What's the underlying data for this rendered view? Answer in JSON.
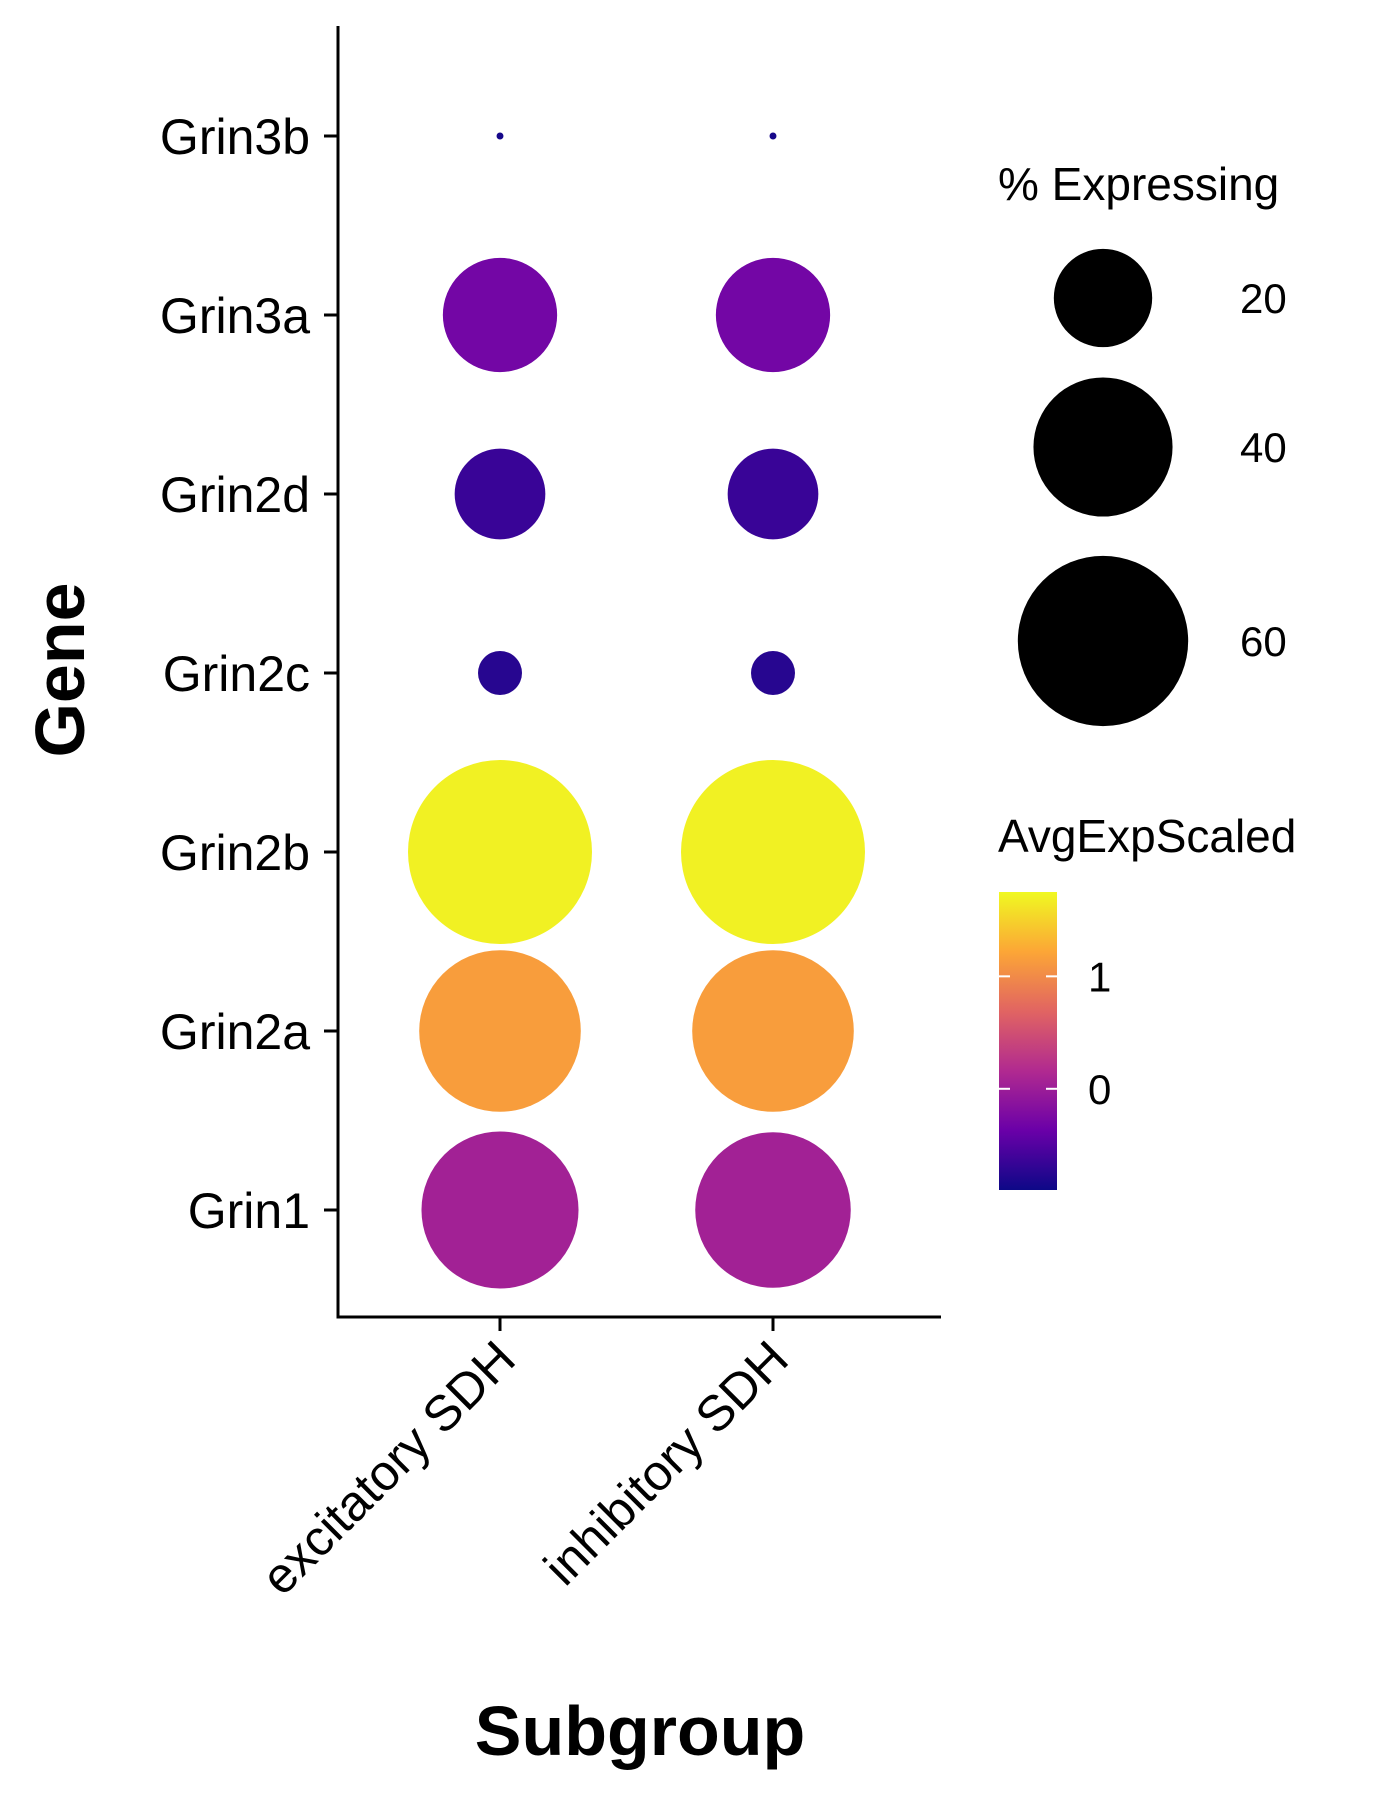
{
  "chart_data": {
    "type": "dot",
    "xlabel": "Subgroup",
    "ylabel": "Gene",
    "categories_x": [
      "excitatory SDH",
      "inhibitory SDH"
    ],
    "categories_y": [
      "Grin1",
      "Grin2a",
      "Grin2b",
      "Grin2c",
      "Grin2d",
      "Grin3a",
      "Grin3b"
    ],
    "points": [
      {
        "x": "excitatory SDH",
        "y": "Grin1",
        "pct": 51,
        "avg": 0.05
      },
      {
        "x": "inhibitory SDH",
        "y": "Grin1",
        "pct": 50,
        "avg": 0.05
      },
      {
        "x": "excitatory SDH",
        "y": "Grin2a",
        "pct": 54,
        "avg": 1.15
      },
      {
        "x": "inhibitory SDH",
        "y": "Grin2a",
        "pct": 54,
        "avg": 1.15
      },
      {
        "x": "excitatory SDH",
        "y": "Grin2b",
        "pct": 70,
        "avg": 1.7
      },
      {
        "x": "inhibitory SDH",
        "y": "Grin2b",
        "pct": 70,
        "avg": 1.7
      },
      {
        "x": "excitatory SDH",
        "y": "Grin2c",
        "pct": 4,
        "avg": -0.75
      },
      {
        "x": "inhibitory SDH",
        "y": "Grin2c",
        "pct": 4,
        "avg": -0.75
      },
      {
        "x": "excitatory SDH",
        "y": "Grin2d",
        "pct": 17,
        "avg": -0.65
      },
      {
        "x": "inhibitory SDH",
        "y": "Grin2d",
        "pct": 17,
        "avg": -0.65
      },
      {
        "x": "excitatory SDH",
        "y": "Grin3a",
        "pct": 27,
        "avg": -0.3
      },
      {
        "x": "inhibitory SDH",
        "y": "Grin3a",
        "pct": 27,
        "avg": -0.3
      },
      {
        "x": "excitatory SDH",
        "y": "Grin3b",
        "pct": 0.1,
        "avg": -0.85
      },
      {
        "x": "inhibitory SDH",
        "y": "Grin3b",
        "pct": 0.1,
        "avg": -0.85
      }
    ],
    "size_legend": {
      "title": "% Expressing",
      "values": [
        20,
        40,
        60
      ]
    },
    "color_legend": {
      "title": "AvgExpScaled",
      "ticks": [
        0,
        1
      ],
      "range": [
        -0.9,
        1.75
      ],
      "colors": [
        "#0d0887",
        "#6a00a8",
        "#b12a90",
        "#e16462",
        "#fca636",
        "#f0f921"
      ]
    }
  }
}
